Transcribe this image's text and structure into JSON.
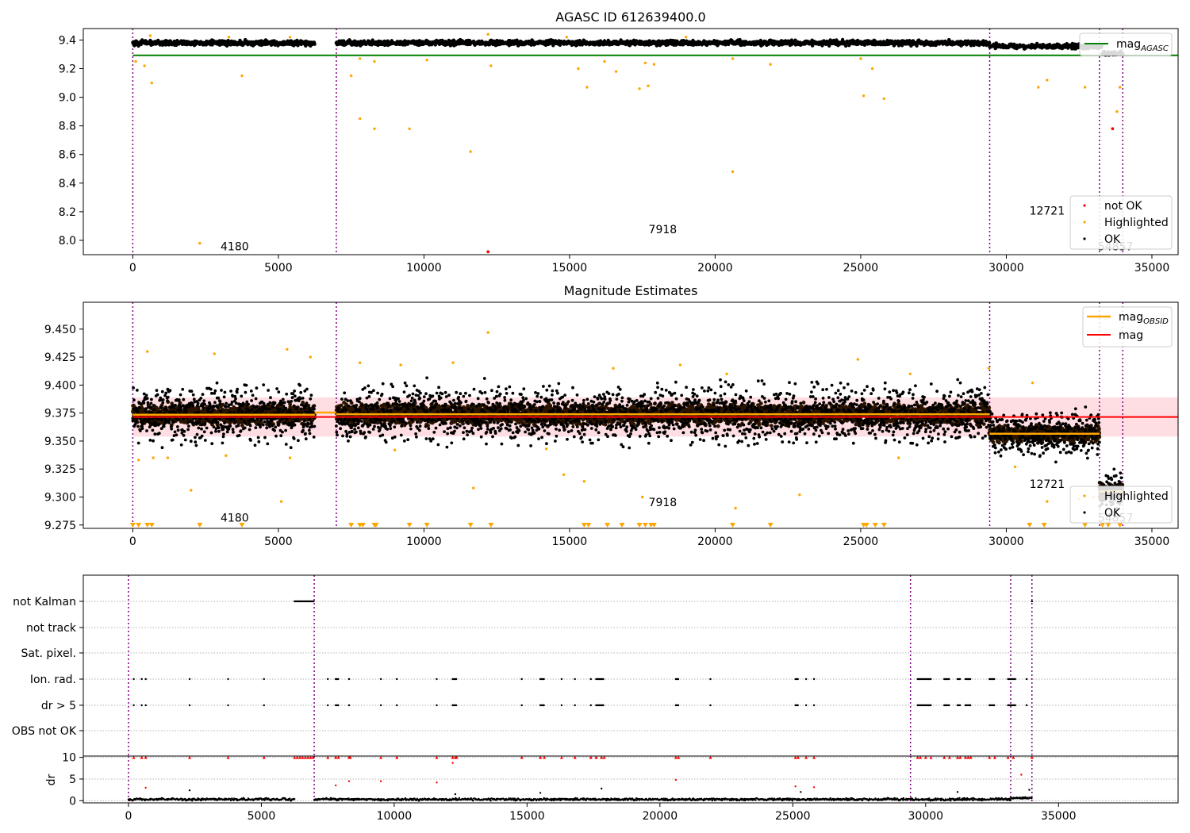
{
  "figure": {
    "title": "AGASC ID 612639400.0",
    "subtitle": "Magnitude Estimates"
  },
  "colors": {
    "ok": "#000000",
    "highlighted": "#ffa500",
    "not_ok": "#ff0000",
    "mag_agasc": "#008000",
    "mag": "#ff0000",
    "mag_obsid": "#ffa500",
    "band": "#ffb6c1",
    "obsid_line": "#800080",
    "grid": "#b0b0b0"
  },
  "chart_data": [
    {
      "type": "scatter",
      "title": "AGASC ID 612639400.0",
      "xlabel": "",
      "ylabel": "",
      "xlim": [
        -1700,
        35900
      ],
      "ylim": [
        7.9,
        9.48
      ],
      "xticks": [
        0,
        5000,
        10000,
        15000,
        20000,
        25000,
        30000,
        35000
      ],
      "yticks": [
        8.0,
        8.2,
        8.4,
        8.6,
        8.8,
        9.0,
        9.2,
        9.4
      ],
      "legend_top": {
        "position": "top-right",
        "entries": [
          "mag$_{AGASC}$"
        ]
      },
      "legend_bottom": {
        "position": "bottom-right",
        "entries": [
          "not OK",
          "Highlighted",
          "OK"
        ]
      },
      "hline_mag_agasc": {
        "y": 9.293,
        "x": [
          0,
          35900
        ]
      },
      "obsid_boundaries": [
        0,
        6990,
        29430,
        33200,
        34000
      ],
      "obsid_labels": [
        {
          "text": "4180",
          "x": 3500,
          "y": 7.93
        },
        {
          "text": "7918",
          "x": 18200,
          "y": 8.05
        },
        {
          "text": "12721",
          "x": 31400,
          "y": 8.18
        },
        {
          "text": "54857",
          "x": 33750,
          "y": 7.93
        }
      ],
      "ok_segments": [
        {
          "x": [
            0,
            6250
          ],
          "y": 9.38,
          "spread": 0.025
        },
        {
          "x": [
            6990,
            29430
          ],
          "y": 9.38,
          "spread": 0.025
        },
        {
          "x": [
            29430,
            33300
          ],
          "y": 9.355,
          "spread": 0.025
        },
        {
          "x": [
            33300,
            34000
          ],
          "y": 9.305,
          "spread": 0.02
        }
      ],
      "highlighted_points": [
        [
          2300,
          7.98
        ],
        [
          3750,
          9.15
        ],
        [
          650,
          9.1
        ],
        [
          400,
          9.22
        ],
        [
          100,
          9.25
        ],
        [
          7500,
          9.15
        ],
        [
          7800,
          8.85
        ],
        [
          8300,
          8.78
        ],
        [
          9500,
          8.78
        ],
        [
          11600,
          8.62
        ],
        [
          7800,
          9.27
        ],
        [
          8300,
          9.25
        ],
        [
          10100,
          9.26
        ],
        [
          12300,
          9.22
        ],
        [
          15600,
          9.07
        ],
        [
          15300,
          9.2
        ],
        [
          16200,
          9.25
        ],
        [
          16600,
          9.18
        ],
        [
          17400,
          9.06
        ],
        [
          17700,
          9.08
        ],
        [
          17600,
          9.24
        ],
        [
          17900,
          9.23
        ],
        [
          20600,
          8.48
        ],
        [
          20600,
          9.27
        ],
        [
          21900,
          9.23
        ],
        [
          25000,
          9.27
        ],
        [
          25100,
          9.01
        ],
        [
          25400,
          9.2
        ],
        [
          25800,
          8.99
        ],
        [
          31100,
          9.07
        ],
        [
          31400,
          9.12
        ],
        [
          32700,
          9.07
        ],
        [
          33900,
          9.07
        ],
        [
          33800,
          8.9
        ],
        [
          12200,
          9.44
        ],
        [
          600,
          9.43
        ],
        [
          5400,
          9.42
        ],
        [
          3300,
          9.42
        ],
        [
          14900,
          9.42
        ],
        [
          19000,
          9.42
        ]
      ],
      "not_ok_points": [
        [
          12200,
          7.92
        ],
        [
          33650,
          8.78
        ]
      ]
    },
    {
      "type": "scatter",
      "title": "Magnitude Estimates",
      "xlabel": "",
      "ylabel": "",
      "xlim": [
        -1700,
        35900
      ],
      "ylim": [
        9.272,
        9.474
      ],
      "xticks": [
        0,
        5000,
        10000,
        15000,
        20000,
        25000,
        30000,
        35000
      ],
      "yticks": [
        9.275,
        9.3,
        9.325,
        9.35,
        9.375,
        9.4,
        9.425,
        9.45
      ],
      "ytick_labels": [
        "9.275",
        "9.300",
        "9.325",
        "9.350",
        "9.375",
        "9.400",
        "9.425",
        "9.450"
      ],
      "legend_top": {
        "position": "top-right",
        "entries": [
          "mag$_{OBSID}$",
          "mag"
        ]
      },
      "legend_bottom": {
        "position": "bottom-right",
        "entries": [
          "Highlighted",
          "OK"
        ]
      },
      "mag_line": {
        "y": 9.3715,
        "x": [
          0,
          35900
        ]
      },
      "mag_band": {
        "y": [
          9.354,
          9.389
        ],
        "x": [
          0,
          35900
        ]
      },
      "mag_obsid": [
        {
          "x": [
            0,
            6250
          ],
          "y": 9.3735
        },
        {
          "x": [
            6250,
            6990
          ],
          "y": 9.3755
        },
        {
          "x": [
            6990,
            29430
          ],
          "y": 9.374
        },
        {
          "x": [
            29430,
            33200
          ],
          "y": 9.3565
        },
        {
          "x": [
            33200,
            34000
          ],
          "y": 9.305
        }
      ],
      "obsid_boundaries": [
        0,
        6990,
        29430,
        33200,
        34000
      ],
      "obsid_labels": [
        {
          "text": "4180",
          "x": 3500,
          "y": 9.278
        },
        {
          "text": "7918",
          "x": 18200,
          "y": 9.292
        },
        {
          "text": "12721",
          "x": 31400,
          "y": 9.308
        },
        {
          "text": "54857",
          "x": 33750,
          "y": 9.278
        }
      ],
      "ok_segments": [
        {
          "x": [
            0,
            6250
          ],
          "y": 9.3735,
          "spread": 0.035
        },
        {
          "x": [
            6990,
            29430
          ],
          "y": 9.374,
          "spread": 0.035
        },
        {
          "x": [
            29430,
            33200
          ],
          "y": 9.3565,
          "spread": 0.028
        },
        {
          "x": [
            33200,
            34000
          ],
          "y": 9.305,
          "spread": 0.025
        }
      ],
      "highlighted_points": [
        [
          2000,
          9.306
        ],
        [
          5100,
          9.296
        ],
        [
          11700,
          9.308
        ],
        [
          14800,
          9.32
        ],
        [
          15500,
          9.314
        ],
        [
          17500,
          9.3
        ],
        [
          20700,
          9.29
        ],
        [
          22900,
          9.302
        ],
        [
          31400,
          9.296
        ],
        [
          32500,
          9.298
        ],
        [
          12200,
          9.447
        ],
        [
          6100,
          9.425
        ],
        [
          500,
          9.43
        ],
        [
          2800,
          9.428
        ],
        [
          5300,
          9.432
        ],
        [
          7800,
          9.42
        ],
        [
          9200,
          9.418
        ],
        [
          11000,
          9.42
        ],
        [
          18800,
          9.418
        ],
        [
          24900,
          9.423
        ],
        [
          30900,
          9.402
        ],
        [
          29400,
          9.415
        ],
        [
          20400,
          9.41
        ],
        [
          26700,
          9.41
        ],
        [
          16500,
          9.415
        ],
        [
          5400,
          9.335
        ],
        [
          1200,
          9.335
        ],
        [
          700,
          9.335
        ],
        [
          200,
          9.333
        ],
        [
          30300,
          9.327
        ],
        [
          33000,
          9.3
        ],
        [
          14200,
          9.343
        ],
        [
          9000,
          9.342
        ],
        [
          26300,
          9.335
        ],
        [
          3200,
          9.337
        ]
      ],
      "clipped_marker_x": [
        0,
        200,
        500,
        650,
        2300,
        3750,
        7500,
        7800,
        7900,
        8300,
        8350,
        9500,
        10100,
        11600,
        12300,
        15500,
        15650,
        16300,
        16800,
        17400,
        17600,
        17800,
        17900,
        20600,
        21900,
        25100,
        25200,
        25500,
        25800,
        30800,
        31300,
        32700,
        33300,
        33500,
        33900
      ]
    },
    {
      "type": "scatter",
      "title": "",
      "xlabel": "",
      "ylabel": "",
      "xlim": [
        -1700,
        39500
      ],
      "xticks": [
        0,
        5000,
        10000,
        15000,
        20000,
        25000,
        30000,
        35000
      ],
      "flag_rows": [
        "not Kalman",
        "not track",
        "Sat. pixel.",
        "Ion. rad.",
        "dr > 5",
        "OBS not OK"
      ],
      "obsid_boundaries": [
        0,
        6990,
        29430,
        33200,
        34000
      ],
      "flags": {
        "not Kalman": [
          [
            6250,
            6990
          ],
          [
            34000,
            34000
          ]
        ],
        "Ion. rad.": [
          [
            200,
            200
          ],
          [
            500,
            500
          ],
          [
            650,
            650
          ],
          [
            2300,
            2300
          ],
          [
            3750,
            3750
          ],
          [
            5100,
            5100
          ],
          [
            7500,
            7500
          ],
          [
            7800,
            7900
          ],
          [
            8300,
            8350
          ],
          [
            9500,
            9500
          ],
          [
            10100,
            10100
          ],
          [
            11600,
            11600
          ],
          [
            12200,
            12350
          ],
          [
            14800,
            14800
          ],
          [
            15500,
            15650
          ],
          [
            16300,
            16300
          ],
          [
            16800,
            16800
          ],
          [
            17400,
            17400
          ],
          [
            17600,
            17900
          ],
          [
            20600,
            20700
          ],
          [
            21900,
            21900
          ],
          [
            25100,
            25200
          ],
          [
            25500,
            25500
          ],
          [
            25800,
            25800
          ],
          [
            29700,
            30200
          ],
          [
            30700,
            30900
          ],
          [
            31200,
            31300
          ],
          [
            31500,
            31700
          ],
          [
            32400,
            32600
          ],
          [
            33100,
            33400
          ],
          [
            33800,
            33800
          ]
        ],
        "dr > 5": [
          [
            200,
            200
          ],
          [
            500,
            500
          ],
          [
            650,
            650
          ],
          [
            2300,
            2300
          ],
          [
            3750,
            3750
          ],
          [
            5100,
            5100
          ],
          [
            7500,
            7500
          ],
          [
            7800,
            7900
          ],
          [
            8300,
            8350
          ],
          [
            9500,
            9500
          ],
          [
            10100,
            10100
          ],
          [
            11600,
            11600
          ],
          [
            12200,
            12350
          ],
          [
            14800,
            14800
          ],
          [
            15500,
            15650
          ],
          [
            16300,
            16300
          ],
          [
            16800,
            16800
          ],
          [
            17400,
            17400
          ],
          [
            17600,
            17900
          ],
          [
            20600,
            20700
          ],
          [
            21900,
            21900
          ],
          [
            25100,
            25200
          ],
          [
            25500,
            25500
          ],
          [
            25800,
            25800
          ],
          [
            29700,
            30200
          ],
          [
            30700,
            30900
          ],
          [
            31200,
            31300
          ],
          [
            31500,
            31700
          ],
          [
            32400,
            32600
          ],
          [
            33100,
            33400
          ],
          [
            33800,
            33800
          ]
        ]
      }
    },
    {
      "type": "scatter",
      "title": "",
      "xlabel": "",
      "ylabel": "dr",
      "xlim": [
        -1700,
        39500
      ],
      "ylim": [
        -0.5,
        10.3
      ],
      "xticks": [
        0,
        5000,
        10000,
        15000,
        20000,
        25000,
        30000,
        35000
      ],
      "yticks": [
        0,
        5,
        10
      ],
      "obsid_boundaries": [
        0,
        6990,
        29430,
        33200,
        34000
      ],
      "dr_segments": [
        {
          "x": [
            0,
            6250
          ],
          "y": 0.3,
          "spread": 0.4
        },
        {
          "x": [
            6990,
            29430
          ],
          "y": 0.3,
          "spread": 0.4
        },
        {
          "x": [
            29430,
            33200
          ],
          "y": 0.3,
          "spread": 0.4
        },
        {
          "x": [
            33200,
            34000
          ],
          "y": 0.6,
          "spread": 0.4
        }
      ],
      "dr_capped_points_x": [
        200,
        500,
        650,
        2300,
        3750,
        5100,
        6250,
        6350,
        6450,
        6550,
        6650,
        6750,
        6850,
        6950,
        7500,
        7800,
        7900,
        8300,
        8350,
        9500,
        10100,
        11600,
        12200,
        12300,
        12350,
        14800,
        15500,
        15650,
        16300,
        16800,
        17400,
        17600,
        17800,
        17900,
        20600,
        20700,
        21900,
        25100,
        25200,
        25500,
        25800,
        29700,
        29800,
        30000,
        30200,
        30700,
        30900,
        31200,
        31300,
        31500,
        31600,
        31700,
        32400,
        32600,
        33100,
        33300,
        34000
      ],
      "dr_red_points": [
        [
          650,
          3.0
        ],
        [
          7800,
          3.5
        ],
        [
          8300,
          4.5
        ],
        [
          9500,
          4.5
        ],
        [
          11600,
          4.2
        ],
        [
          12200,
          8.7
        ],
        [
          20600,
          4.8
        ],
        [
          25100,
          3.3
        ],
        [
          25800,
          3.1
        ],
        [
          33600,
          6.0
        ]
      ],
      "dr_black_outliers": [
        [
          2300,
          2.4
        ],
        [
          12300,
          1.5
        ],
        [
          15500,
          1.8
        ],
        [
          17800,
          2.8
        ],
        [
          25300,
          2.0
        ],
        [
          31200,
          2.0
        ],
        [
          33900,
          2.5
        ]
      ]
    }
  ]
}
